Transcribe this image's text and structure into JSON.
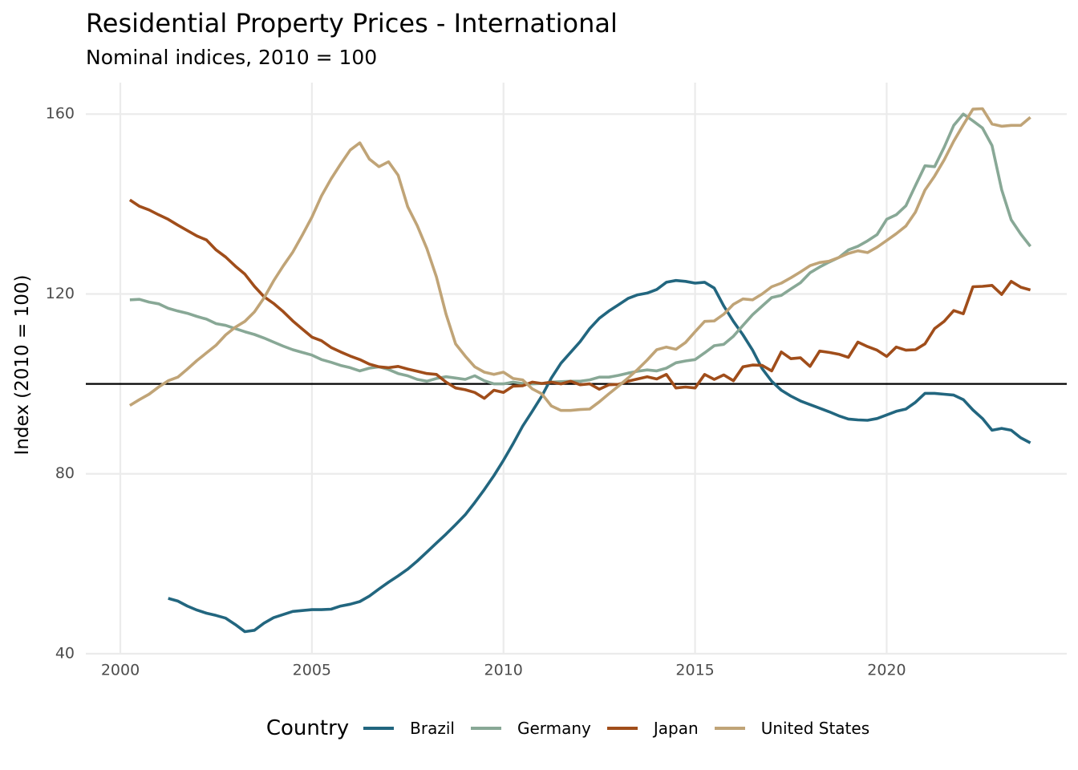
{
  "title": "Residential Property Prices - International",
  "subtitle": "Nominal indices, 2010 = 100",
  "legend": {
    "title": "Country",
    "items": [
      {
        "label": "Brazil",
        "color": "#22667f"
      },
      {
        "label": "Germany",
        "color": "#88a896"
      },
      {
        "label": "Japan",
        "color": "#a04d1a"
      },
      {
        "label": "United States",
        "color": "#c0a477"
      }
    ]
  },
  "chart_data": {
    "type": "line",
    "title": "Residential Property Prices - International",
    "subtitle": "Nominal indices, 2010 = 100",
    "xlabel": "",
    "ylabel": "Index (2010 = 100)",
    "xlim": [
      1999.1,
      2024.7
    ],
    "ylim": [
      40,
      167
    ],
    "xticks": [
      2000,
      2005,
      2010,
      2015,
      2020
    ],
    "yticks": [
      40,
      80,
      120,
      160
    ],
    "reference_line": {
      "y": 100
    },
    "grid": true,
    "legend_position": "bottom",
    "series": [
      {
        "name": "Brazil",
        "color": "#22667f",
        "x": [
          2001.25,
          2001.5,
          2001.75,
          2002.0,
          2002.25,
          2002.5,
          2002.75,
          2003.0,
          2003.25,
          2003.5,
          2003.75,
          2004.0,
          2004.25,
          2004.5,
          2004.75,
          2005.0,
          2005.25,
          2005.5,
          2005.75,
          2006.0,
          2006.25,
          2006.5,
          2006.75,
          2007.0,
          2007.25,
          2007.5,
          2007.75,
          2008.0,
          2008.25,
          2008.5,
          2008.75,
          2009.0,
          2009.25,
          2009.5,
          2009.75,
          2010.0,
          2010.25,
          2010.5,
          2010.75,
          2011.0,
          2011.25,
          2011.5,
          2011.75,
          2012.0,
          2012.25,
          2012.5,
          2012.75,
          2013.0,
          2013.25,
          2013.5,
          2013.75,
          2014.0,
          2014.25,
          2014.5,
          2014.75,
          2015.0,
          2015.25,
          2015.5,
          2015.75,
          2016.0,
          2016.25,
          2016.5,
          2016.75,
          2017.0,
          2017.25,
          2017.5,
          2017.75,
          2018.0,
          2018.25,
          2018.5,
          2018.75,
          2019.0,
          2019.25,
          2019.5,
          2019.75,
          2020.0,
          2020.25,
          2020.5,
          2020.75,
          2021.0,
          2021.25,
          2021.5,
          2021.75,
          2022.0,
          2022.25,
          2022.5,
          2022.75,
          2023.0,
          2023.25,
          2023.5,
          2023.75
        ],
        "values": [
          52.3,
          51.7,
          50.6,
          49.7,
          49.0,
          48.5,
          47.9,
          46.5,
          44.9,
          45.2,
          46.8,
          48.0,
          48.7,
          49.4,
          49.6,
          49.8,
          49.8,
          49.9,
          50.6,
          51.0,
          51.6,
          52.8,
          54.4,
          55.9,
          57.3,
          58.8,
          60.6,
          62.6,
          64.6,
          66.6,
          68.7,
          70.9,
          73.6,
          76.5,
          79.6,
          83.0,
          86.7,
          90.6,
          93.9,
          97.3,
          101.3,
          104.6,
          107.0,
          109.4,
          112.3,
          114.6,
          116.2,
          117.6,
          119.0,
          119.8,
          120.2,
          121.0,
          122.6,
          123.0,
          122.8,
          122.4,
          122.6,
          121.3,
          117.3,
          113.9,
          110.9,
          107.5,
          103.4,
          100.6,
          98.6,
          97.3,
          96.2,
          95.4,
          94.6,
          93.8,
          92.9,
          92.2,
          92.0,
          91.9,
          92.3,
          93.1,
          93.9,
          94.4,
          95.9,
          97.9,
          97.9,
          97.7,
          97.5,
          96.5,
          94.2,
          92.3,
          89.7,
          90.1,
          89.7,
          88.0,
          86.9
        ]
      },
      {
        "name": "Germany",
        "color": "#88a896",
        "x": [
          2000.25,
          2000.5,
          2000.75,
          2001.0,
          2001.25,
          2001.5,
          2001.75,
          2002.0,
          2002.25,
          2002.5,
          2002.75,
          2003.0,
          2003.25,
          2003.5,
          2003.75,
          2004.0,
          2004.25,
          2004.5,
          2004.75,
          2005.0,
          2005.25,
          2005.5,
          2005.75,
          2006.0,
          2006.25,
          2006.5,
          2006.75,
          2007.0,
          2007.25,
          2007.5,
          2007.75,
          2008.0,
          2008.25,
          2008.5,
          2008.75,
          2009.0,
          2009.25,
          2009.5,
          2009.75,
          2010.0,
          2010.25,
          2010.5,
          2010.75,
          2011.0,
          2011.25,
          2011.5,
          2011.75,
          2012.0,
          2012.25,
          2012.5,
          2012.75,
          2013.0,
          2013.25,
          2013.5,
          2013.75,
          2014.0,
          2014.25,
          2014.5,
          2014.75,
          2015.0,
          2015.25,
          2015.5,
          2015.75,
          2016.0,
          2016.25,
          2016.5,
          2016.75,
          2017.0,
          2017.25,
          2017.5,
          2017.75,
          2018.0,
          2018.25,
          2018.5,
          2018.75,
          2019.0,
          2019.25,
          2019.5,
          2019.75,
          2020.0,
          2020.25,
          2020.5,
          2020.75,
          2021.0,
          2021.25,
          2021.5,
          2021.75,
          2022.0,
          2022.25,
          2022.5,
          2022.75,
          2023.0,
          2023.25,
          2023.5,
          2023.75
        ],
        "values": [
          118.7,
          118.8,
          118.2,
          117.8,
          116.8,
          116.2,
          115.7,
          115.0,
          114.4,
          113.4,
          113.0,
          112.3,
          111.6,
          111.0,
          110.2,
          109.3,
          108.4,
          107.6,
          107.0,
          106.4,
          105.4,
          104.8,
          104.1,
          103.6,
          102.9,
          103.5,
          103.8,
          103.2,
          102.3,
          101.8,
          101.0,
          100.6,
          101.2,
          101.6,
          101.3,
          101.0,
          101.8,
          100.7,
          100.0,
          100.0,
          100.4,
          100.1,
          100.0,
          100.1,
          100.4,
          100.5,
          100.6,
          100.6,
          100.9,
          101.5,
          101.5,
          101.9,
          102.4,
          102.8,
          103.1,
          102.9,
          103.5,
          104.7,
          105.1,
          105.4,
          106.9,
          108.5,
          108.8,
          110.6,
          113.0,
          115.4,
          117.3,
          119.2,
          119.7,
          121.1,
          122.5,
          124.7,
          126.0,
          127.1,
          128.1,
          129.8,
          130.6,
          131.8,
          133.2,
          136.6,
          137.6,
          139.6,
          144.1,
          148.5,
          148.3,
          152.6,
          157.5,
          160.0,
          158.5,
          156.9,
          153.0,
          143.2,
          136.5,
          133.3,
          130.6
        ]
      },
      {
        "name": "Japan",
        "color": "#a04d1a",
        "x": [
          2000.25,
          2000.5,
          2000.75,
          2001.0,
          2001.25,
          2001.5,
          2001.75,
          2002.0,
          2002.25,
          2002.5,
          2002.75,
          2003.0,
          2003.25,
          2003.5,
          2003.75,
          2004.0,
          2004.25,
          2004.5,
          2004.75,
          2005.0,
          2005.25,
          2005.5,
          2005.75,
          2006.0,
          2006.25,
          2006.5,
          2006.75,
          2007.0,
          2007.25,
          2007.5,
          2007.75,
          2008.0,
          2008.25,
          2008.5,
          2008.75,
          2009.0,
          2009.25,
          2009.5,
          2009.75,
          2010.0,
          2010.25,
          2010.5,
          2010.75,
          2011.0,
          2011.25,
          2011.5,
          2011.75,
          2012.0,
          2012.25,
          2012.5,
          2012.75,
          2013.0,
          2013.25,
          2013.5,
          2013.75,
          2014.0,
          2014.25,
          2014.5,
          2014.75,
          2015.0,
          2015.25,
          2015.5,
          2015.75,
          2016.0,
          2016.25,
          2016.5,
          2016.75,
          2017.0,
          2017.25,
          2017.5,
          2017.75,
          2018.0,
          2018.25,
          2018.5,
          2018.75,
          2019.0,
          2019.25,
          2019.5,
          2019.75,
          2020.0,
          2020.25,
          2020.5,
          2020.75,
          2021.0,
          2021.25,
          2021.5,
          2021.75,
          2022.0,
          2022.25,
          2022.5,
          2022.75,
          2023.0,
          2023.25,
          2023.5,
          2023.75
        ],
        "values": [
          140.9,
          139.5,
          138.7,
          137.6,
          136.6,
          135.3,
          134.1,
          132.9,
          132.0,
          129.8,
          128.2,
          126.2,
          124.4,
          121.7,
          119.4,
          117.9,
          116.1,
          114.0,
          112.2,
          110.4,
          109.6,
          108.1,
          107.1,
          106.2,
          105.4,
          104.4,
          103.8,
          103.6,
          103.9,
          103.3,
          102.8,
          102.3,
          102.1,
          100.4,
          99.1,
          98.7,
          98.1,
          96.8,
          98.6,
          98.1,
          99.5,
          99.6,
          100.4,
          100.1,
          100.4,
          100.0,
          100.6,
          99.8,
          100.0,
          98.8,
          99.8,
          99.9,
          100.6,
          101.1,
          101.6,
          101.1,
          102.1,
          99.1,
          99.3,
          99.1,
          102.1,
          101.0,
          102.0,
          100.7,
          103.8,
          104.2,
          104.1,
          102.9,
          107.1,
          105.6,
          105.8,
          103.9,
          107.3,
          107.0,
          106.6,
          105.9,
          109.3,
          108.3,
          107.5,
          106.1,
          108.2,
          107.5,
          107.6,
          108.9,
          112.3,
          113.9,
          116.3,
          115.6,
          121.6,
          121.7,
          121.9,
          119.9,
          122.8,
          121.5,
          120.9
        ]
      },
      {
        "name": "United States",
        "color": "#c0a477",
        "x": [
          2000.25,
          2000.5,
          2000.75,
          2001.0,
          2001.25,
          2001.5,
          2001.75,
          2002.0,
          2002.25,
          2002.5,
          2002.75,
          2003.0,
          2003.25,
          2003.5,
          2003.75,
          2004.0,
          2004.25,
          2004.5,
          2004.75,
          2005.0,
          2005.25,
          2005.5,
          2005.75,
          2006.0,
          2006.25,
          2006.5,
          2006.75,
          2007.0,
          2007.25,
          2007.5,
          2007.75,
          2008.0,
          2008.25,
          2008.5,
          2008.75,
          2009.0,
          2009.25,
          2009.5,
          2009.75,
          2010.0,
          2010.25,
          2010.5,
          2010.75,
          2011.0,
          2011.25,
          2011.5,
          2011.75,
          2012.0,
          2012.25,
          2012.5,
          2012.75,
          2013.0,
          2013.25,
          2013.5,
          2013.75,
          2014.0,
          2014.25,
          2014.5,
          2014.75,
          2015.0,
          2015.25,
          2015.5,
          2015.75,
          2016.0,
          2016.25,
          2016.5,
          2016.75,
          2017.0,
          2017.25,
          2017.5,
          2017.75,
          2018.0,
          2018.25,
          2018.5,
          2018.75,
          2019.0,
          2019.25,
          2019.5,
          2019.75,
          2020.0,
          2020.25,
          2020.5,
          2020.75,
          2021.0,
          2021.25,
          2021.5,
          2021.75,
          2022.0,
          2022.25,
          2022.5,
          2022.75,
          2023.0,
          2023.25,
          2023.5,
          2023.75
        ],
        "values": [
          95.2,
          96.5,
          97.7,
          99.3,
          100.7,
          101.5,
          103.3,
          105.2,
          106.9,
          108.6,
          110.9,
          112.6,
          113.9,
          116.0,
          119.1,
          122.9,
          126.2,
          129.3,
          133.1,
          137.1,
          141.8,
          145.6,
          148.9,
          152.0,
          153.6,
          150.0,
          148.3,
          149.4,
          146.4,
          139.4,
          135.2,
          130.1,
          123.8,
          115.5,
          108.9,
          106.2,
          103.8,
          102.6,
          102.1,
          102.6,
          101.2,
          100.9,
          98.9,
          97.8,
          95.1,
          94.1,
          94.1,
          94.3,
          94.4,
          96.0,
          97.8,
          99.5,
          101.3,
          103.2,
          105.3,
          107.6,
          108.2,
          107.7,
          109.2,
          111.6,
          113.9,
          114.0,
          115.5,
          117.7,
          118.9,
          118.7,
          120.0,
          121.6,
          122.4,
          123.6,
          124.9,
          126.3,
          127.0,
          127.3,
          128.1,
          129.0,
          129.6,
          129.2,
          130.4,
          131.9,
          133.4,
          135.1,
          138.2,
          143.1,
          146.2,
          149.8,
          154.0,
          157.6,
          161.1,
          161.2,
          157.8,
          157.3,
          157.5,
          157.5,
          159.3
        ]
      }
    ]
  }
}
